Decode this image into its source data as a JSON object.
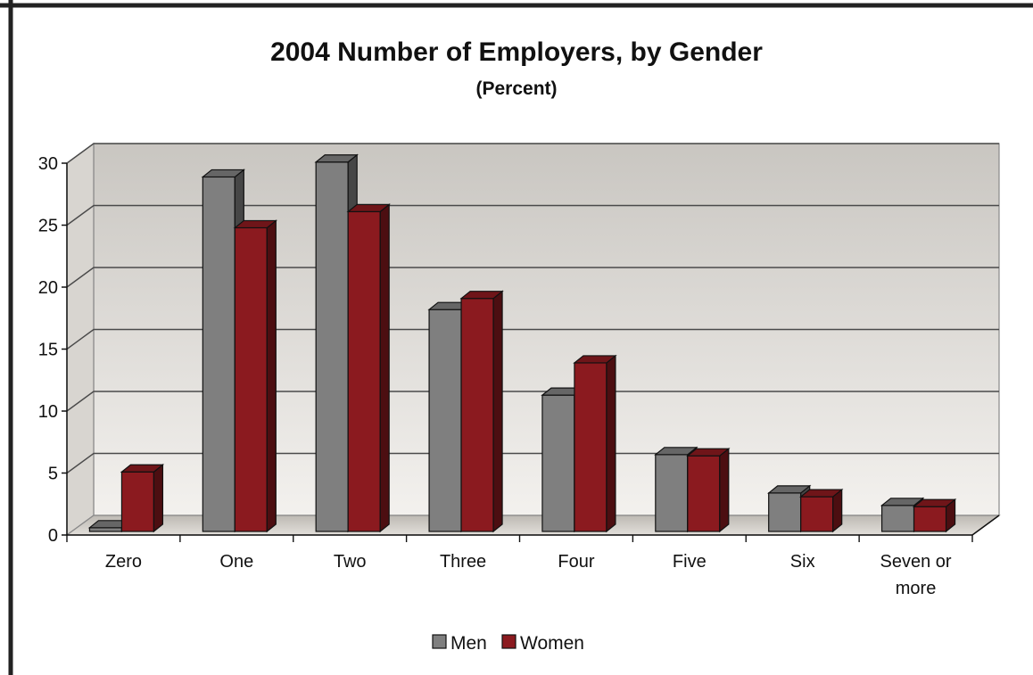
{
  "colors": {
    "men": "#7f7f7f",
    "women": "#8b1a1f"
  },
  "chart_data": {
    "type": "bar",
    "title": "2004 Number of Employers, by Gender",
    "subtitle": "(Percent)",
    "xlabel": "",
    "ylabel": "",
    "categories": [
      "Zero",
      "One",
      "Two",
      "Three",
      "Four",
      "Five",
      "Six",
      "Seven or more"
    ],
    "category_lines": [
      [
        "Zero"
      ],
      [
        "One"
      ],
      [
        "Two"
      ],
      [
        "Three"
      ],
      [
        "Four"
      ],
      [
        "Five"
      ],
      [
        "Six"
      ],
      [
        "Seven or",
        "more"
      ]
    ],
    "series": [
      {
        "name": "Men",
        "values": [
          0.3,
          28.6,
          29.8,
          17.9,
          11.0,
          6.2,
          3.1,
          2.1
        ]
      },
      {
        "name": "Women",
        "values": [
          4.8,
          24.5,
          25.8,
          18.8,
          13.6,
          6.1,
          2.8,
          2.0
        ]
      }
    ],
    "ylim": [
      0,
      30
    ],
    "yticks": [
      0,
      5,
      10,
      15,
      20,
      25,
      30
    ],
    "grid": true,
    "legend_position": "bottom-center",
    "style": "3d-clustered-column"
  }
}
